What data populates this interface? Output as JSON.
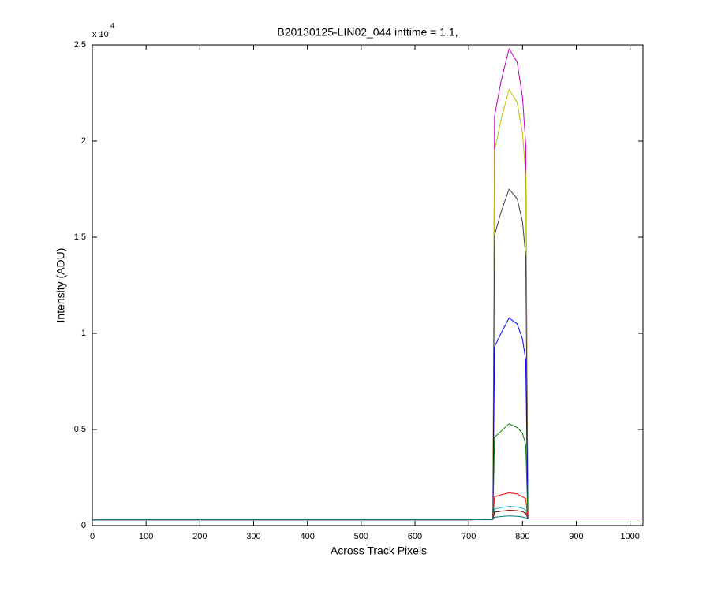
{
  "chart_data": {
    "type": "line",
    "title": "B20130125-LIN02_044 inttime = 1.1,",
    "x_label": "Across Track Pixels",
    "y_label": "Intensity (ADU)",
    "y_multiplier": "x 10",
    "y_exponent": "4",
    "x": [
      0,
      100,
      200,
      300,
      400,
      500,
      600,
      700,
      745,
      748,
      760,
      775,
      790,
      800,
      806,
      810,
      900,
      1024
    ],
    "series": [
      {
        "color": "#bf00bf",
        "values": [
          0.03,
          0.03,
          0.03,
          0.03,
          0.03,
          0.03,
          0.03,
          0.03,
          0.032,
          2.13,
          2.31,
          2.48,
          2.41,
          2.23,
          1.98,
          0.035,
          0.035,
          0.035
        ]
      },
      {
        "color": "#bfbf00",
        "values": [
          0.03,
          0.03,
          0.03,
          0.03,
          0.03,
          0.03,
          0.03,
          0.03,
          0.032,
          1.95,
          2.11,
          2.27,
          2.2,
          2.04,
          1.82,
          0.035,
          0.035,
          0.035
        ]
      },
      {
        "color": "#404040",
        "values": [
          0.03,
          0.03,
          0.03,
          0.03,
          0.03,
          0.03,
          0.03,
          0.03,
          0.032,
          1.51,
          1.63,
          1.75,
          1.7,
          1.58,
          1.4,
          0.035,
          0.035,
          0.035
        ]
      },
      {
        "color": "#0000ff",
        "values": [
          0.03,
          0.03,
          0.03,
          0.03,
          0.03,
          0.03,
          0.03,
          0.03,
          0.032,
          0.93,
          1.0,
          1.08,
          1.05,
          0.97,
          0.86,
          0.035,
          0.035,
          0.035
        ]
      },
      {
        "color": "#008000",
        "values": [
          0.03,
          0.03,
          0.03,
          0.03,
          0.03,
          0.03,
          0.03,
          0.03,
          0.032,
          0.46,
          0.49,
          0.53,
          0.51,
          0.48,
          0.42,
          0.035,
          0.035,
          0.035
        ]
      },
      {
        "color": "#ff0000",
        "values": [
          0.03,
          0.03,
          0.03,
          0.03,
          0.03,
          0.03,
          0.03,
          0.03,
          0.032,
          0.15,
          0.16,
          0.17,
          0.165,
          0.15,
          0.14,
          0.035,
          0.035,
          0.035
        ]
      },
      {
        "color": "#00bfbf",
        "values": [
          0.03,
          0.03,
          0.03,
          0.03,
          0.03,
          0.03,
          0.03,
          0.03,
          0.032,
          0.086,
          0.093,
          0.1,
          0.097,
          0.09,
          0.08,
          0.035,
          0.035,
          0.035
        ]
      },
      {
        "color": "#8b0000",
        "values": [
          0.03,
          0.03,
          0.03,
          0.03,
          0.03,
          0.03,
          0.03,
          0.03,
          0.032,
          0.07,
          0.075,
          0.08,
          0.078,
          0.072,
          0.064,
          0.035,
          0.035,
          0.035
        ]
      },
      {
        "color": "#008080",
        "values": [
          0.03,
          0.03,
          0.03,
          0.03,
          0.03,
          0.03,
          0.03,
          0.03,
          0.032,
          0.043,
          0.047,
          0.05,
          0.048,
          0.045,
          0.04,
          0.035,
          0.035,
          0.035
        ]
      }
    ],
    "xlim": [
      0,
      1024
    ],
    "xticks": [
      0,
      100,
      200,
      300,
      400,
      500,
      600,
      700,
      800,
      900,
      1000
    ],
    "ylim": [
      0,
      2.5
    ],
    "yticks": [
      0,
      0.5,
      1,
      1.5,
      2,
      2.5
    ],
    "grid": false
  }
}
